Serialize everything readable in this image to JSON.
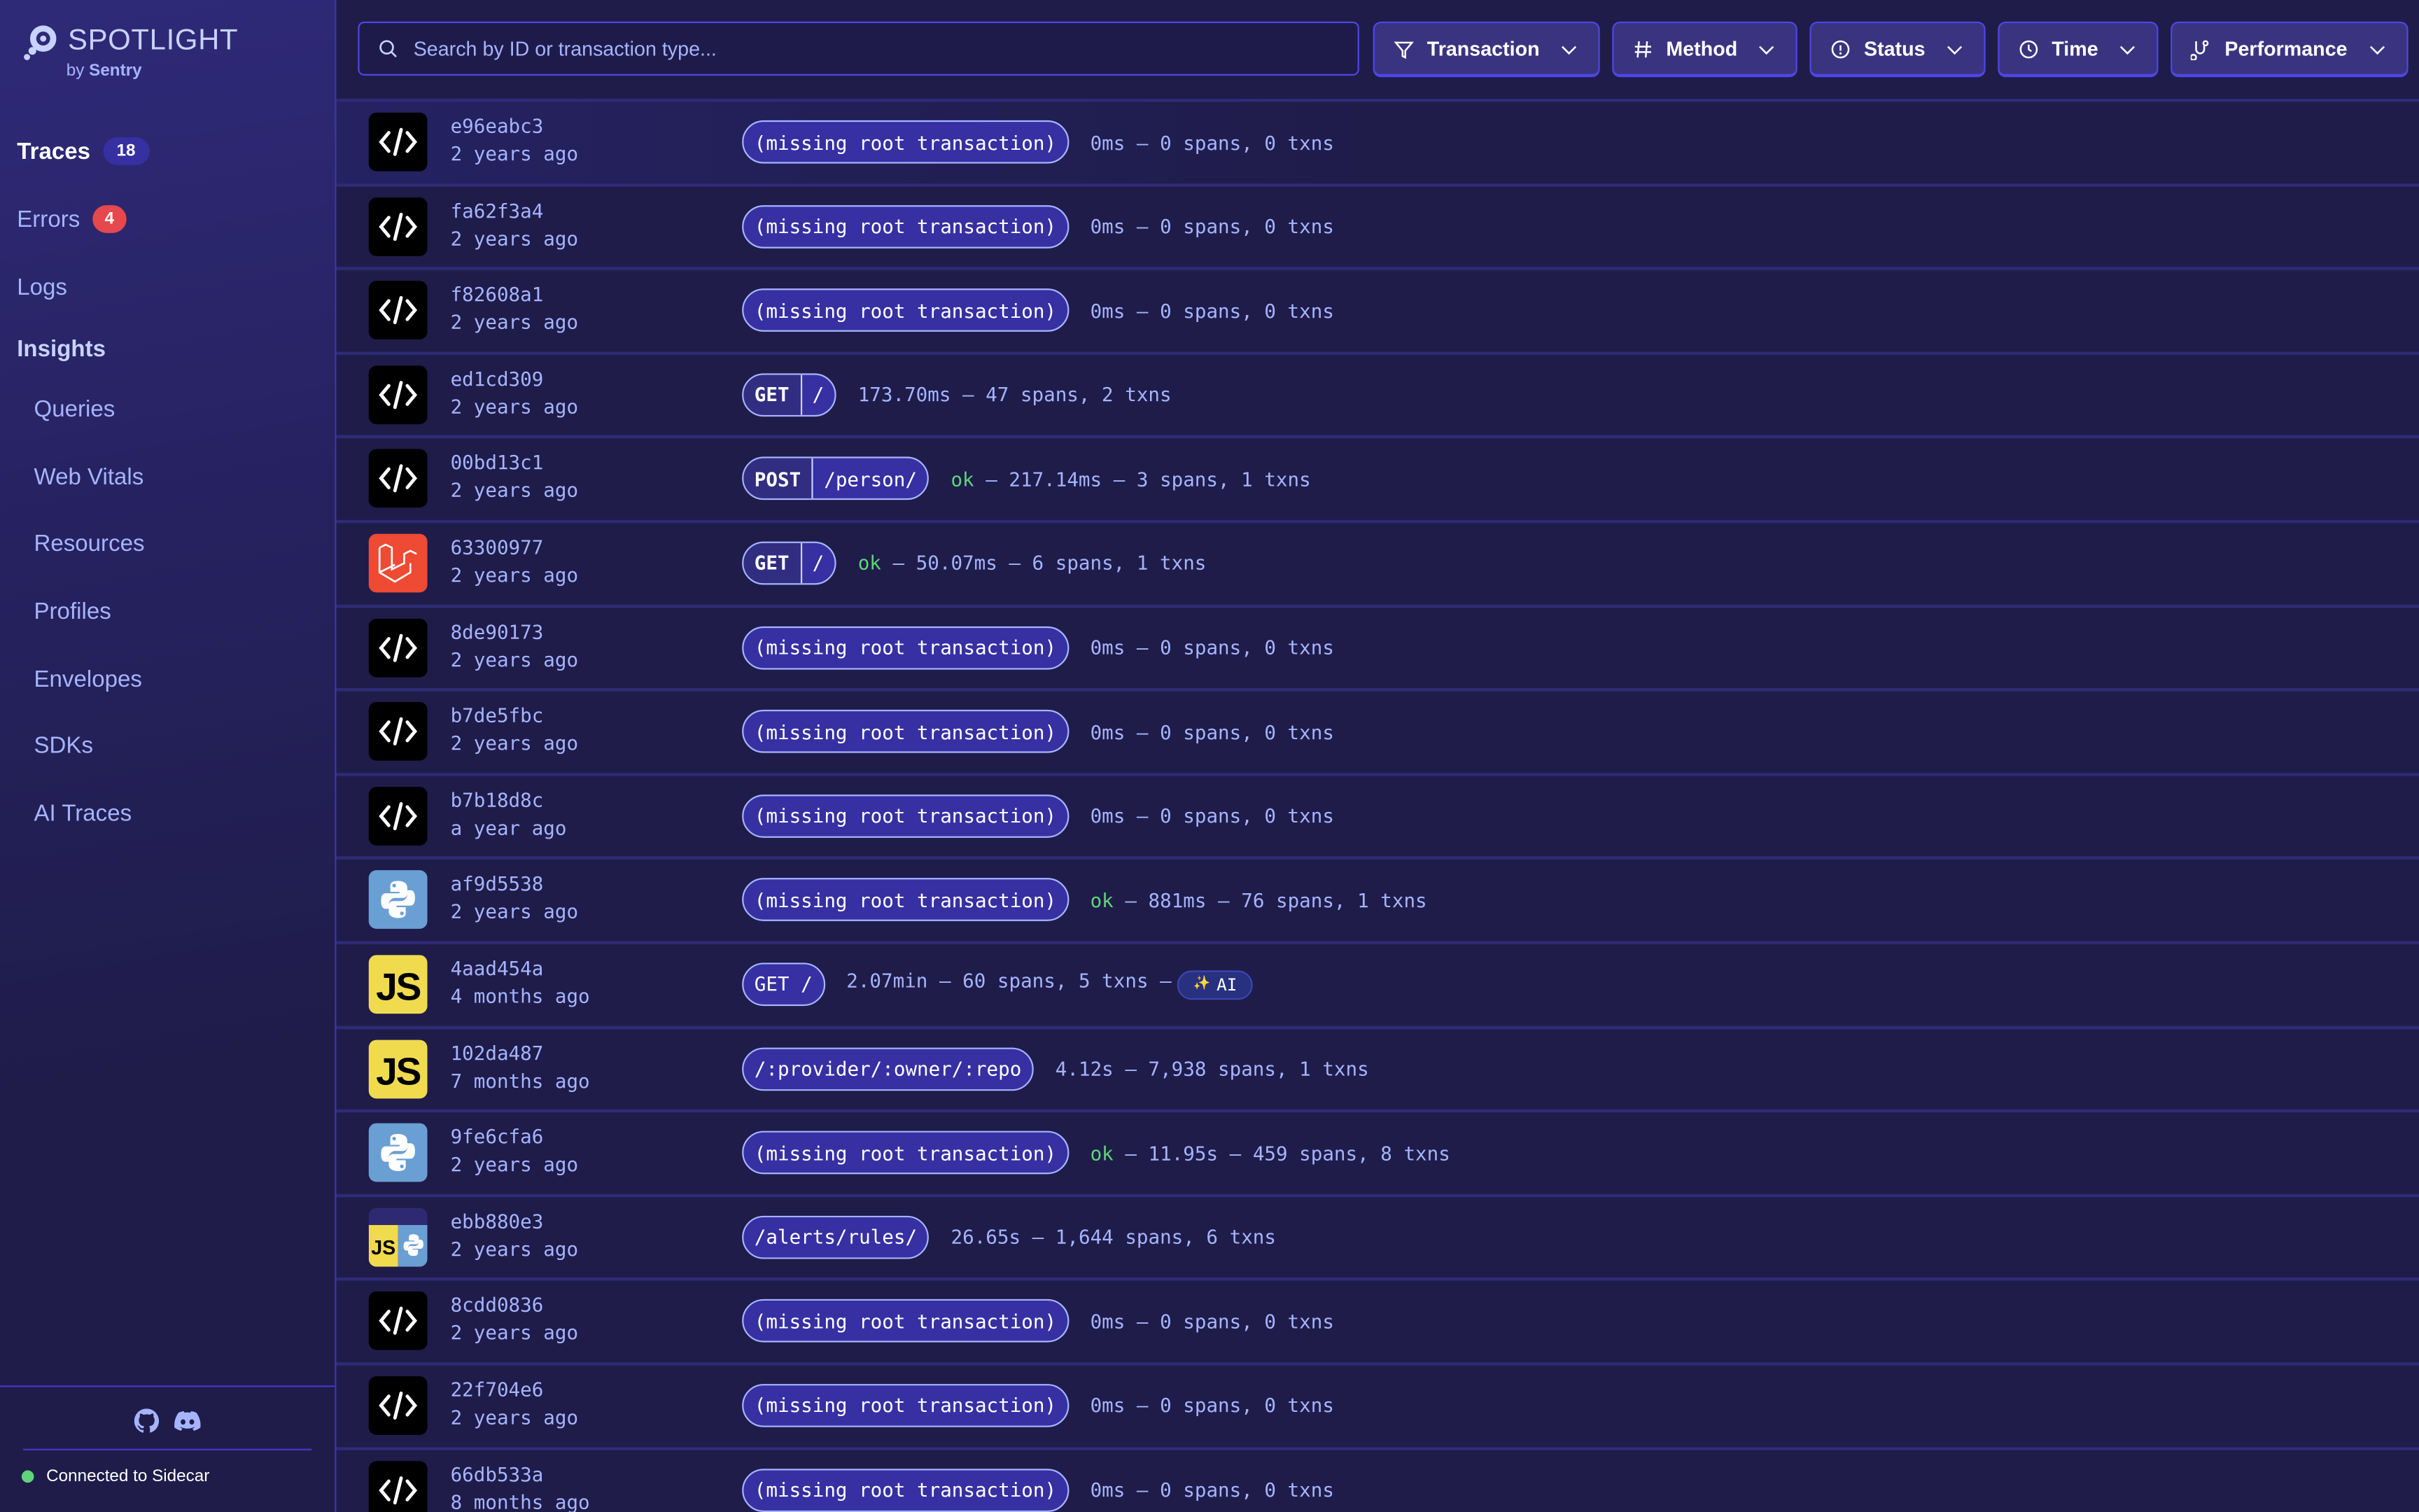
{
  "app": {
    "title": "SPOTLIGHT",
    "subtitle_by": "by",
    "subtitle_brand": "Sentry"
  },
  "sidebar": {
    "items": [
      {
        "label": "Traces",
        "badge": "18",
        "badge_color": "#3730a3",
        "active": true
      },
      {
        "label": "Errors",
        "badge": "4",
        "badge_color": "#e5484d"
      },
      {
        "label": "Logs"
      }
    ],
    "insights_heading": "Insights",
    "insights": [
      "Queries",
      "Web Vitals",
      "Resources",
      "Profiles",
      "Envelopes",
      "SDKs",
      "AI Traces"
    ],
    "footer": {
      "icons": [
        "github-icon",
        "discord-icon"
      ],
      "status": "Connected to Sidecar",
      "status_color": "#5fd47a"
    }
  },
  "search": {
    "placeholder": "Search by ID or transaction type..."
  },
  "filters": [
    {
      "label": "Transaction",
      "icon": "filter-icon"
    },
    {
      "label": "Method",
      "icon": "hash-icon"
    },
    {
      "label": "Status",
      "icon": "alert-circle-icon"
    },
    {
      "label": "Time",
      "icon": "clock-icon"
    },
    {
      "label": "Performance",
      "icon": "stethoscope-icon"
    }
  ],
  "traces": [
    {
      "id": "e96eabc3",
      "time": "2 years ago",
      "platform": "code",
      "name": "(missing root transaction)",
      "status": "",
      "summary": "0ms – 0 spans, 0 txns"
    },
    {
      "id": "fa62f3a4",
      "time": "2 years ago",
      "platform": "code",
      "name": "(missing root transaction)",
      "status": "",
      "summary": "0ms – 0 spans, 0 txns"
    },
    {
      "id": "f82608a1",
      "time": "2 years ago",
      "platform": "code",
      "name": "(missing root transaction)",
      "status": "",
      "summary": "0ms – 0 spans, 0 txns"
    },
    {
      "id": "ed1cd309",
      "time": "2 years ago",
      "platform": "code",
      "method": "GET",
      "name": "/",
      "status": "",
      "summary": "173.70ms – 47 spans, 2 txns"
    },
    {
      "id": "00bd13c1",
      "time": "2 years ago",
      "platform": "code",
      "method": "POST",
      "name": "/person/",
      "status": "ok",
      "summary": " – 217.14ms – 3 spans, 1 txns"
    },
    {
      "id": "63300977",
      "time": "2 years ago",
      "platform": "laravel",
      "method": "GET",
      "name": "/",
      "status": "ok",
      "summary": " – 50.07ms – 6 spans, 1 txns"
    },
    {
      "id": "8de90173",
      "time": "2 years ago",
      "platform": "code",
      "name": "(missing root transaction)",
      "status": "",
      "summary": "0ms – 0 spans, 0 txns"
    },
    {
      "id": "b7de5fbc",
      "time": "2 years ago",
      "platform": "code",
      "name": "(missing root transaction)",
      "status": "",
      "summary": "0ms – 0 spans, 0 txns"
    },
    {
      "id": "b7b18d8c",
      "time": "a year ago",
      "platform": "code",
      "name": "(missing root transaction)",
      "status": "",
      "summary": "0ms – 0 spans, 0 txns"
    },
    {
      "id": "af9d5538",
      "time": "2 years ago",
      "platform": "python",
      "name": "(missing root transaction)",
      "status": "ok",
      "summary": " – 881ms – 76 spans, 1 txns"
    },
    {
      "id": "4aad454a",
      "time": "4 months ago",
      "platform": "javascript",
      "name": "GET /",
      "status": "",
      "summary": "2.07min – 60 spans, 5 txns –",
      "ai_badge": "AI"
    },
    {
      "id": "102da487",
      "time": "7 months ago",
      "platform": "javascript",
      "name": "/:provider/:owner/:repo",
      "status": "",
      "summary": "4.12s – 7,938 spans, 1 txns"
    },
    {
      "id": "9fe6cfa6",
      "time": "2 years ago",
      "platform": "python",
      "name": "(missing root transaction)",
      "status": "ok",
      "summary": " – 11.95s – 459 spans, 8 txns"
    },
    {
      "id": "ebb880e3",
      "time": "2 years ago",
      "platform": "javascript-python",
      "name": "/alerts/rules/",
      "status": "",
      "summary": "26.65s – 1,644 spans, 6 txns"
    },
    {
      "id": "8cdd0836",
      "time": "2 years ago",
      "platform": "code",
      "name": "(missing root transaction)",
      "status": "",
      "summary": "0ms – 0 spans, 0 txns"
    },
    {
      "id": "22f704e6",
      "time": "2 years ago",
      "platform": "code",
      "name": "(missing root transaction)",
      "status": "",
      "summary": "0ms – 0 spans, 0 txns"
    },
    {
      "id": "66db533a",
      "time": "8 months ago",
      "platform": "code",
      "name": "(missing root transaction)",
      "status": "",
      "summary": "0ms – 0 spans, 0 txns"
    }
  ]
}
